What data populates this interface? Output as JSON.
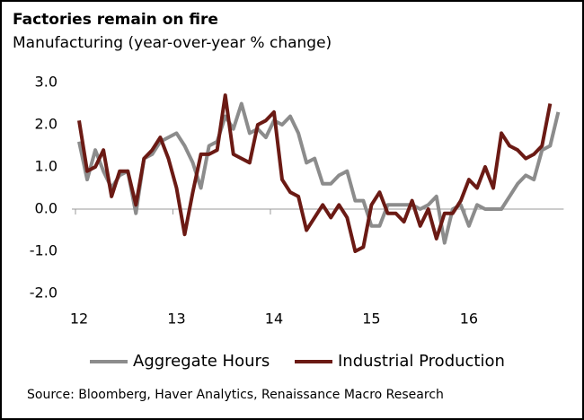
{
  "chart_data": {
    "type": "line",
    "title": "Factories remain on fire",
    "subtitle": "Manufacturing (year-over-year % change)",
    "source": "Source: Bloomberg, Haver Analytics, Renaissance Macro Research",
    "categories": [
      "12",
      null,
      null,
      null,
      null,
      null,
      null,
      null,
      null,
      null,
      null,
      null,
      "13",
      null,
      null,
      null,
      null,
      null,
      null,
      null,
      null,
      null,
      null,
      null,
      "14",
      null,
      null,
      null,
      null,
      null,
      null,
      null,
      null,
      null,
      null,
      null,
      "15",
      null,
      null,
      null,
      null,
      null,
      null,
      null,
      null,
      null,
      null,
      null,
      "16",
      null,
      null,
      null,
      null,
      null,
      null,
      null,
      null,
      null,
      null,
      null
    ],
    "series": [
      {
        "name": "Aggregate Hours",
        "color": "#8c8c8c",
        "values": [
          1.6,
          0.7,
          1.4,
          0.9,
          0.5,
          0.8,
          0.9,
          -0.1,
          1.2,
          1.3,
          1.6,
          1.7,
          1.8,
          1.5,
          1.1,
          0.5,
          1.5,
          1.6,
          2.2,
          1.9,
          2.5,
          1.8,
          1.9,
          1.7,
          2.1,
          2.0,
          2.2,
          1.8,
          1.1,
          1.2,
          0.6,
          0.6,
          0.8,
          0.9,
          0.2,
          0.2,
          -0.4,
          -0.4,
          0.1,
          0.1,
          0.1,
          0.1,
          0.0,
          0.1,
          0.3,
          -0.8,
          0.0,
          0.1,
          -0.4,
          0.1,
          0.0,
          0.0,
          0.0,
          0.3,
          0.6,
          0.8,
          0.7,
          1.4,
          1.5,
          2.3
        ]
      },
      {
        "name": "Industrial Production",
        "color": "#6b1a14",
        "values": [
          2.1,
          0.9,
          1.0,
          1.4,
          0.3,
          0.9,
          0.9,
          0.1,
          1.2,
          1.4,
          1.7,
          1.2,
          0.5,
          -0.6,
          0.4,
          1.3,
          1.3,
          1.4,
          2.7,
          1.3,
          1.2,
          1.1,
          2.0,
          2.1,
          2.3,
          0.7,
          0.4,
          0.3,
          -0.5,
          -0.2,
          0.1,
          -0.2,
          0.1,
          -0.2,
          -1.0,
          -0.9,
          0.1,
          0.4,
          -0.1,
          -0.1,
          -0.3,
          0.2,
          -0.4,
          0.0,
          -0.7,
          -0.1,
          -0.1,
          0.2,
          0.7,
          0.5,
          1.0,
          0.5,
          1.8,
          1.5,
          1.4,
          1.2,
          1.3,
          1.5,
          2.5,
          null
        ]
      }
    ],
    "ylim": [
      -2,
      3
    ],
    "yticks": [
      {
        "value": -2,
        "label": "-2.0"
      },
      {
        "value": -1,
        "label": "-1.0"
      },
      {
        "value": 0,
        "label": "0.0"
      },
      {
        "value": 1,
        "label": "1.0"
      },
      {
        "value": 2,
        "label": "2.0"
      },
      {
        "value": 3,
        "label": "3.0"
      }
    ],
    "grid": false,
    "legend": "bottom"
  }
}
